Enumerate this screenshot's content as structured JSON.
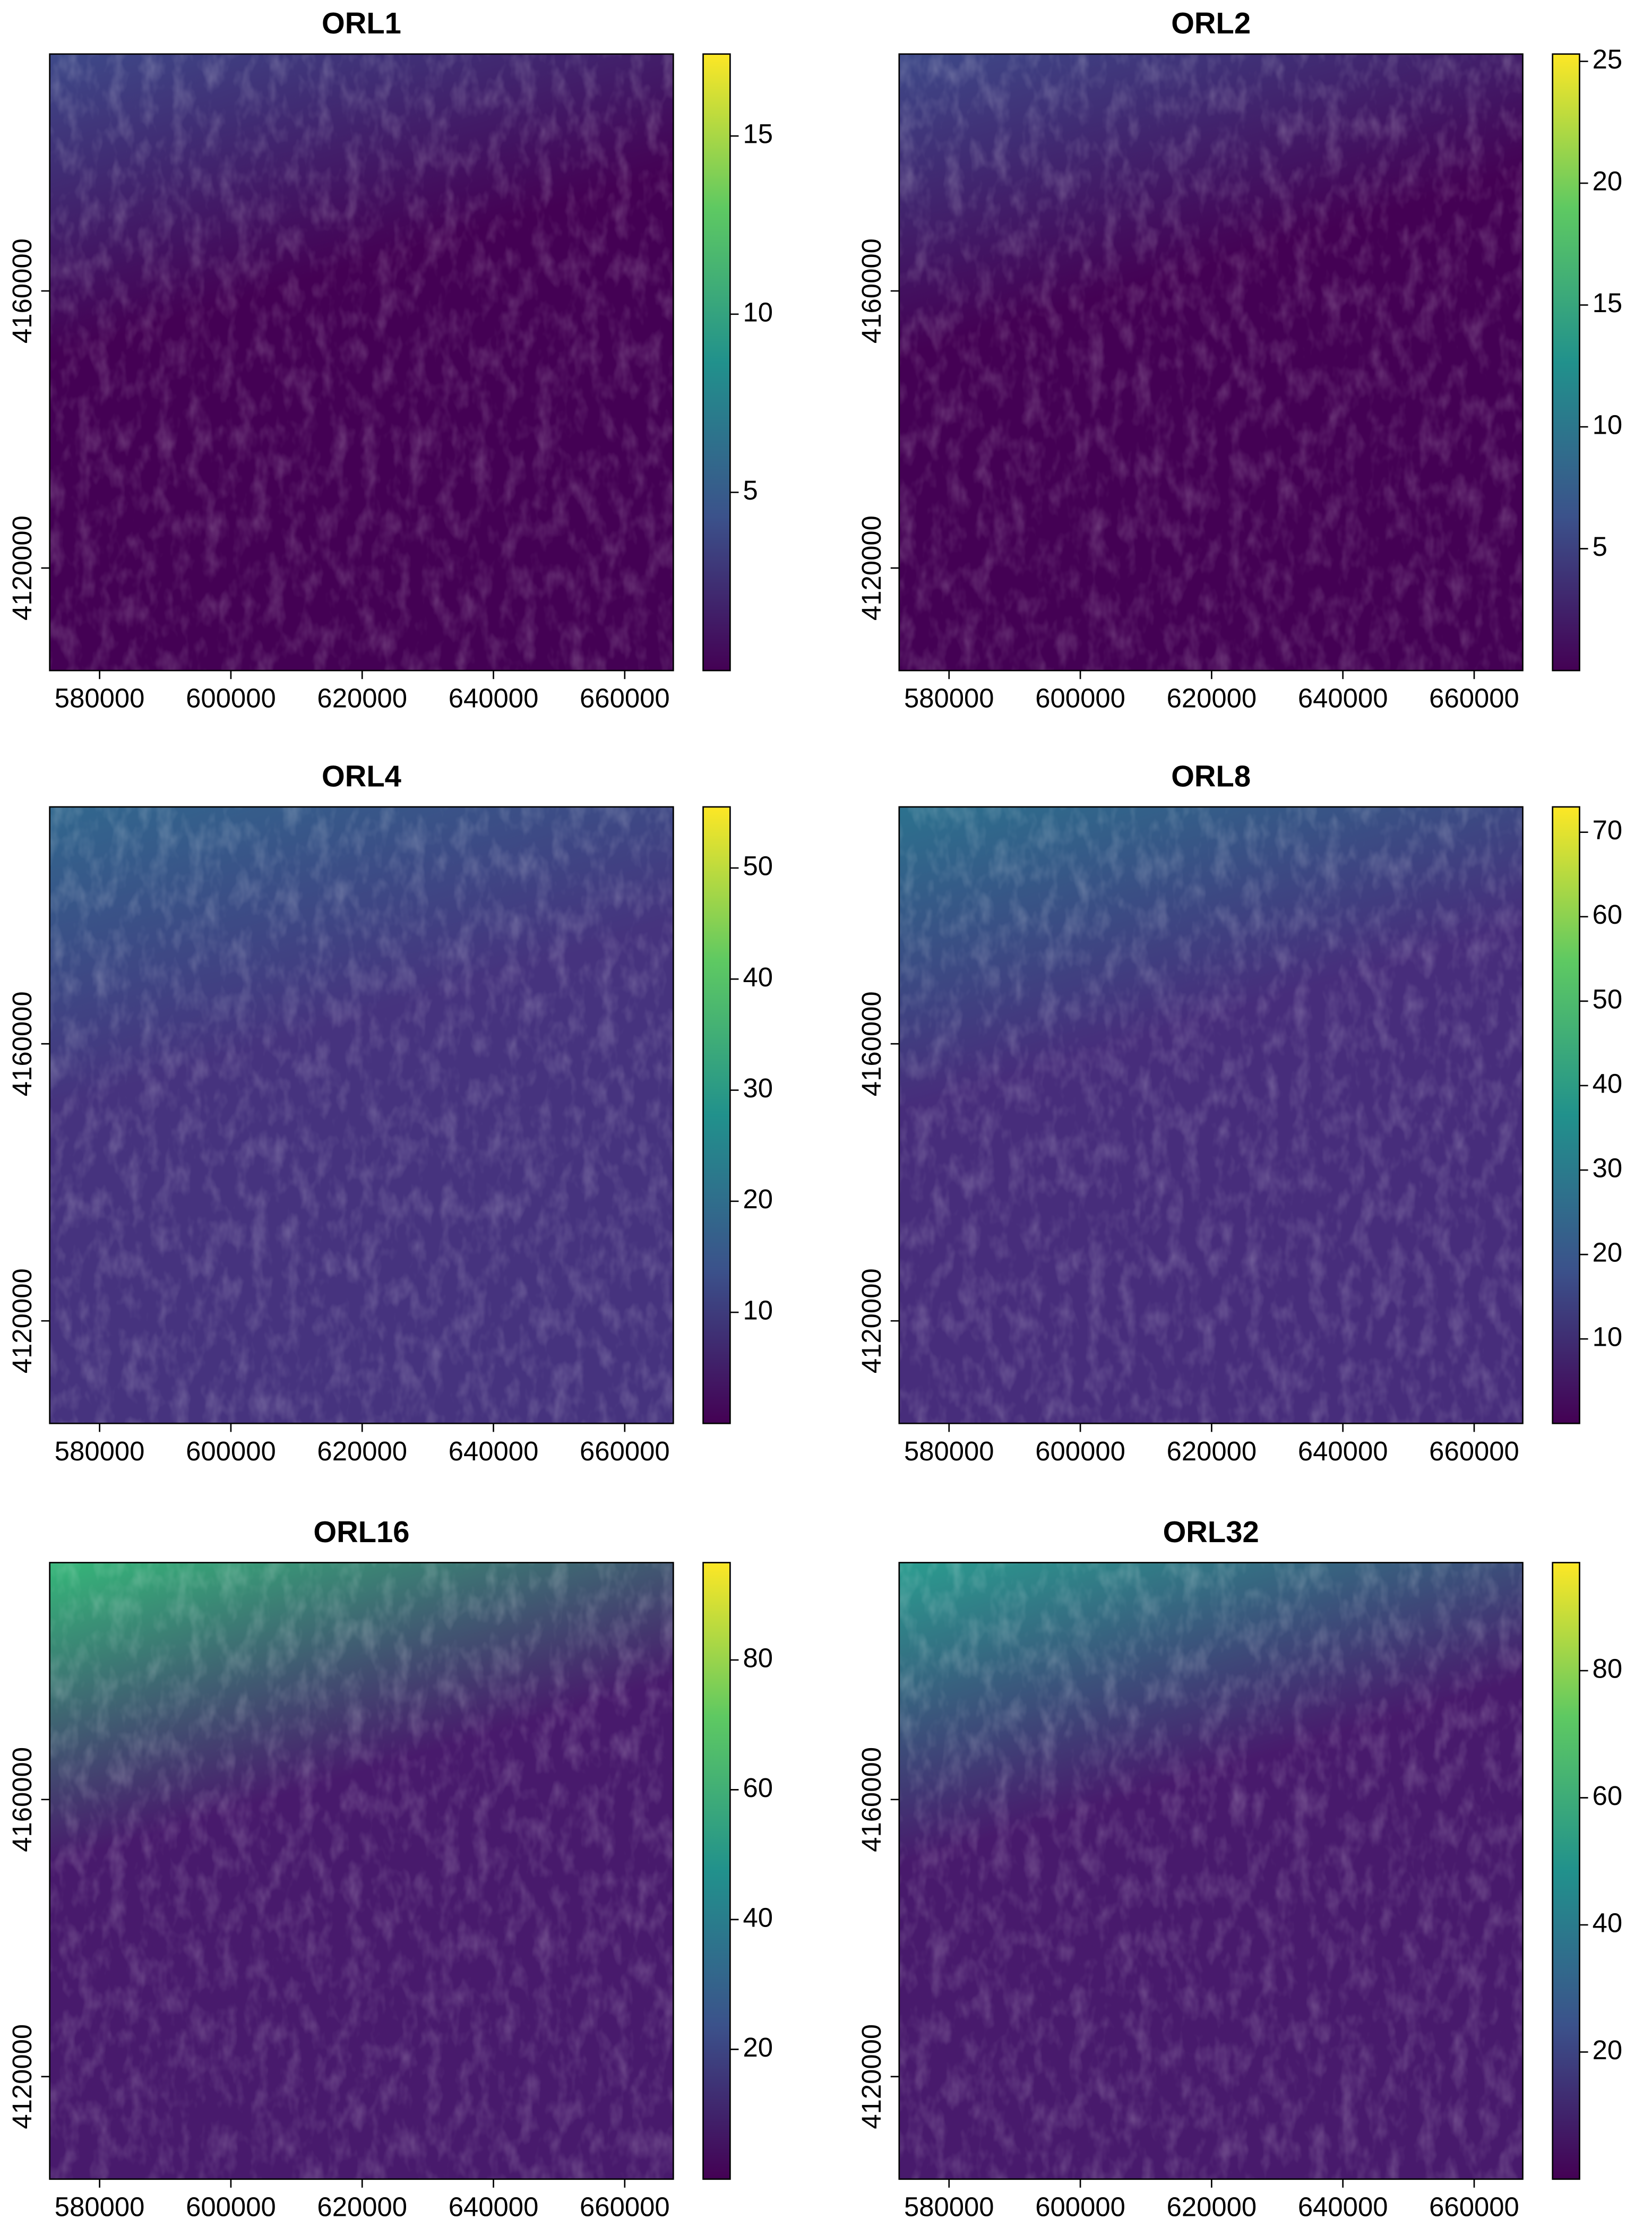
{
  "chart_data": [
    {
      "type": "raster",
      "title": "ORL1",
      "xlim": [
        572400,
        667400
      ],
      "xticks": [
        580000,
        600000,
        620000,
        640000,
        660000
      ],
      "ylim": [
        4105200,
        4194200
      ],
      "yticks": [
        4120000,
        4160000
      ],
      "zlim": [
        0,
        17.3
      ],
      "zticks": [
        5,
        10,
        15
      ],
      "colormap": [
        "#440154",
        "#3b528b",
        "#21918c",
        "#5ec962",
        "#fde725"
      ],
      "texture": [
        "#440154",
        "#3e4a89"
      ]
    },
    {
      "type": "raster",
      "title": "ORL2",
      "xlim": [
        572400,
        667400
      ],
      "xticks": [
        580000,
        600000,
        620000,
        640000,
        660000
      ],
      "ylim": [
        4105200,
        4194200
      ],
      "yticks": [
        4120000,
        4160000
      ],
      "zlim": [
        0,
        25.3
      ],
      "zticks": [
        5,
        10,
        15,
        20,
        25
      ],
      "colormap": [
        "#440154",
        "#3b528b",
        "#21918c",
        "#5ec962",
        "#fde725"
      ],
      "texture": [
        "#440154",
        "#3e4a89"
      ]
    },
    {
      "type": "raster",
      "title": "ORL4",
      "xlim": [
        572400,
        667400
      ],
      "xticks": [
        580000,
        600000,
        620000,
        640000,
        660000
      ],
      "ylim": [
        4105200,
        4194200
      ],
      "yticks": [
        4120000,
        4160000
      ],
      "zlim": [
        0,
        55.5
      ],
      "zticks": [
        10,
        20,
        30,
        40,
        50
      ],
      "colormap": [
        "#440154",
        "#3b528b",
        "#21918c",
        "#5ec962",
        "#fde725"
      ],
      "texture": [
        "#46337e",
        "#31688e"
      ]
    },
    {
      "type": "raster",
      "title": "ORL8",
      "xlim": [
        572400,
        667400
      ],
      "xticks": [
        580000,
        600000,
        620000,
        640000,
        660000
      ],
      "ylim": [
        4105200,
        4194200
      ],
      "yticks": [
        4120000,
        4160000
      ],
      "zlim": [
        0,
        73
      ],
      "zticks": [
        10,
        20,
        30,
        40,
        50,
        60,
        70
      ],
      "colormap": [
        "#440154",
        "#3b528b",
        "#21918c",
        "#5ec962",
        "#fde725"
      ],
      "texture": [
        "#472d7b",
        "#2c728e"
      ]
    },
    {
      "type": "raster",
      "title": "ORL16",
      "xlim": [
        572400,
        667400
      ],
      "xticks": [
        580000,
        600000,
        620000,
        640000,
        660000
      ],
      "ylim": [
        4105200,
        4194200
      ],
      "yticks": [
        4120000,
        4160000
      ],
      "zlim": [
        0,
        95
      ],
      "zticks": [
        20,
        40,
        60,
        80
      ],
      "colormap": [
        "#440154",
        "#3b528b",
        "#21918c",
        "#5ec962",
        "#fde725"
      ],
      "texture": [
        "#481a6c",
        "#35b779"
      ]
    },
    {
      "type": "raster",
      "title": "ORL32",
      "xlim": [
        572400,
        667400
      ],
      "xticks": [
        580000,
        600000,
        620000,
        640000,
        660000
      ],
      "ylim": [
        4105200,
        4194200
      ],
      "yticks": [
        4120000,
        4160000
      ],
      "zlim": [
        0,
        97
      ],
      "zticks": [
        20,
        40,
        60,
        80
      ],
      "colormap": [
        "#440154",
        "#3b528b",
        "#21918c",
        "#5ec962",
        "#fde725"
      ],
      "texture": [
        "#481a6c",
        "#2a9d8f"
      ]
    }
  ]
}
